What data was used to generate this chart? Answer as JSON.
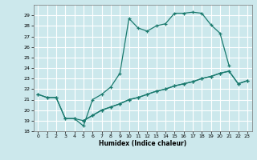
{
  "xlabel": "Humidex (Indice chaleur)",
  "background_color": "#cce8ec",
  "grid_color": "#ffffff",
  "line_color": "#1a7a6e",
  "xlim": [
    -0.5,
    23.5
  ],
  "ylim": [
    18,
    30
  ],
  "yticks": [
    18,
    19,
    20,
    21,
    22,
    23,
    24,
    25,
    26,
    27,
    28,
    29
  ],
  "xticks": [
    0,
    1,
    2,
    3,
    4,
    5,
    6,
    7,
    8,
    9,
    10,
    11,
    12,
    13,
    14,
    15,
    16,
    17,
    18,
    19,
    20,
    21,
    22,
    23
  ],
  "s1_x": [
    0,
    1,
    2,
    3,
    4,
    5,
    6,
    7,
    8,
    9,
    10,
    11,
    12,
    13,
    14,
    15,
    16,
    17,
    18,
    19,
    20,
    21
  ],
  "s1_y": [
    21.5,
    21.2,
    21.2,
    19.2,
    19.2,
    18.5,
    21.0,
    21.5,
    22.2,
    23.5,
    28.7,
    27.8,
    27.5,
    28.0,
    28.2,
    29.2,
    29.2,
    29.3,
    29.2,
    28.1,
    27.3,
    24.2
  ],
  "s2_x": [
    0,
    1,
    2,
    3,
    4,
    5,
    6,
    7,
    8,
    9,
    10,
    11,
    12,
    13,
    14,
    15,
    16,
    17,
    18,
    19,
    20,
    21,
    22,
    23
  ],
  "s2_y": [
    21.5,
    21.2,
    21.2,
    19.2,
    19.2,
    19.0,
    19.5,
    20.0,
    20.3,
    20.6,
    21.0,
    21.2,
    21.5,
    21.8,
    22.0,
    22.3,
    22.5,
    22.7,
    23.0,
    23.2,
    23.5,
    23.7,
    22.5,
    22.8
  ],
  "s3_x": [
    5,
    6,
    7,
    8,
    9,
    10,
    11,
    12,
    13,
    14,
    15,
    16,
    17,
    18,
    19,
    20,
    21,
    22,
    23
  ],
  "s3_y": [
    19.0,
    19.5,
    20.0,
    20.3,
    20.6,
    21.0,
    21.2,
    21.5,
    21.8,
    22.0,
    22.3,
    22.5,
    22.7,
    23.0,
    23.2,
    23.5,
    23.7,
    22.5,
    22.8
  ]
}
